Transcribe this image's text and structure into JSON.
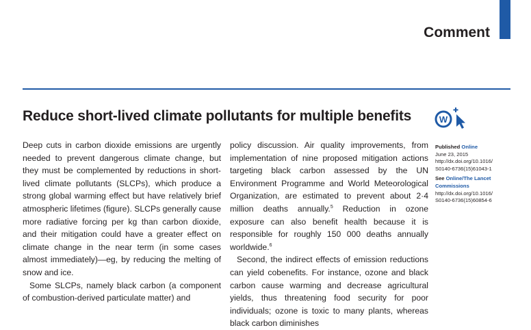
{
  "header": {
    "section": "Comment"
  },
  "article": {
    "title": "Reduce short-lived climate pollutants for multiple benefits",
    "col1": {
      "p1": "Deep cuts in carbon dioxide emissions are urgently needed to prevent dangerous climate change, but they must be complemented by reductions in short-lived climate pollutants (SLCPs), which produce a strong global warming effect but have relatively brief atmospheric lifetimes (figure). SLCPs generally cause more radiative forcing per kg than carbon dioxide, and their mitigation could have a greater effect on climate change in the near term (in some cases almost immediately)—eg, by reducing the melting of snow and ice.",
      "p2": "Some SLCPs, namely black carbon (a component of combustion-derived particulate matter) and"
    },
    "col2": {
      "p1_a": "policy discussion. Air quality improvements, from implementation of nine proposed mitigation actions targeting black carbon assessed by the UN Environment Programme and World Meteorological Organization, are estimated to prevent about 2·4 million deaths annually.",
      "p1_ref1": "5",
      "p1_b": " Reduction in ozone exposure can also benefit health because it is responsible for roughly 150 000 deaths annually worldwide.",
      "p1_ref2": "6",
      "p2": "Second, the indirect effects of emission reductions can yield cobenefits. For instance, ozone and black carbon cause warming and decrease agricultural yields, thus threatening food security for poor individuals; ozone is toxic to many plants, whereas black carbon diminishes"
    }
  },
  "sidebar": {
    "published_label": "Published",
    "published_link": "Online",
    "date": "June 23, 2015",
    "doi1_line1": "http://dx.doi.org/10.1016/",
    "doi1_line2": "S0140-6736(15)61043-1",
    "see_label": "See",
    "see_link": "Online/The Lancet Commissions",
    "doi2_line1": "http://dx.doi.org/10.1016/",
    "doi2_line2": "S0140-6736(15)60854-6"
  },
  "colors": {
    "accent": "#1f5aa6",
    "text": "#231f20"
  },
  "icons": {
    "badge": "crossmark-w-cursor-icon"
  }
}
